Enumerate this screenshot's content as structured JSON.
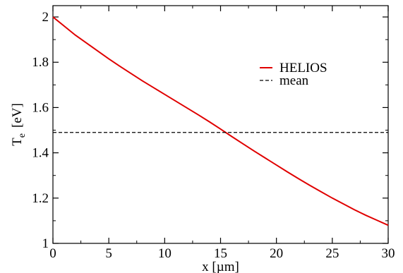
{
  "chart_data": {
    "type": "line",
    "xlabel": "x [µm]",
    "ylabel_main": "T",
    "ylabel_sub": "e",
    "ylabel_unit": "[eV]",
    "xlim": [
      0,
      30
    ],
    "ylim": [
      1,
      2.05
    ],
    "x_ticks": [
      0,
      5,
      10,
      15,
      20,
      25,
      30
    ],
    "y_ticks": [
      1,
      1.2,
      1.4,
      1.6,
      1.8,
      2
    ],
    "x_tick_labels": [
      "0",
      "5",
      "10",
      "15",
      "20",
      "25",
      "30"
    ],
    "y_tick_labels": [
      "1",
      "1.2",
      "1.4",
      "1.6",
      "1.8",
      "2"
    ],
    "grid": false,
    "legend_position": "top-right",
    "series": [
      {
        "name": "HELIOS",
        "style": "solid",
        "color": "#e00000",
        "x": [
          0,
          1,
          2,
          3,
          4,
          5,
          6,
          7,
          8,
          9,
          10,
          11,
          12,
          13,
          14,
          15,
          16,
          17,
          18,
          19,
          20,
          21,
          22,
          23,
          24,
          25,
          26,
          27,
          28,
          29,
          30
        ],
        "y": [
          2.0,
          1.96,
          1.92,
          1.885,
          1.85,
          1.815,
          1.782,
          1.75,
          1.718,
          1.688,
          1.658,
          1.628,
          1.598,
          1.568,
          1.537,
          1.505,
          1.472,
          1.44,
          1.408,
          1.377,
          1.346,
          1.315,
          1.285,
          1.256,
          1.228,
          1.2,
          1.174,
          1.148,
          1.124,
          1.102,
          1.08
        ]
      },
      {
        "name": "mean",
        "style": "dashed",
        "color": "#000000",
        "x": [
          0,
          30
        ],
        "y": [
          1.49,
          1.49
        ]
      }
    ]
  }
}
